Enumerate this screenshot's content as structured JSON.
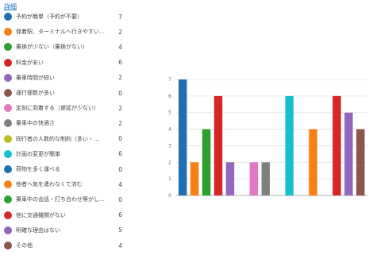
{
  "header": {
    "detail_link": "詳細"
  },
  "chart_data": {
    "type": "bar",
    "categories": [
      "予約が簡単（予約が不要）",
      "発着駅、ターミナルへ行きやすい（…",
      "乗換が少ない（乗換がない）",
      "料金が安い",
      "乗車時間が短い",
      "運行便数が多い",
      "定刻に到着する（遅延が少ない）",
      "乗車中の快適さ",
      "同行者の人数的な制約（多い・…",
      "計画の変更が簡単",
      "荷物を多く運べる",
      "他者へ気を遣わなくて済む",
      "乗車中の会話・打ち合わせ等がし…",
      "他に交通機関がない",
      "明確な理由はない",
      "その他"
    ],
    "values": [
      7,
      2,
      4,
      6,
      2,
      0,
      2,
      2,
      0,
      6,
      0,
      4,
      0,
      6,
      5,
      4
    ],
    "colors": [
      "#1f6fb2",
      "#f77f13",
      "#2ca02c",
      "#d62728",
      "#9467bd",
      "#8c564b",
      "#e377c2",
      "#7f7f7f",
      "#bcbd22",
      "#17becf",
      "#1f6fb2",
      "#f77f13",
      "#2ca02c",
      "#d62728",
      "#9467bd",
      "#8c564b"
    ],
    "ylim": [
      0,
      7
    ],
    "yticks": [
      "0",
      "1",
      "2",
      "3",
      "4",
      "5",
      "6",
      "7"
    ],
    "grid": true
  }
}
